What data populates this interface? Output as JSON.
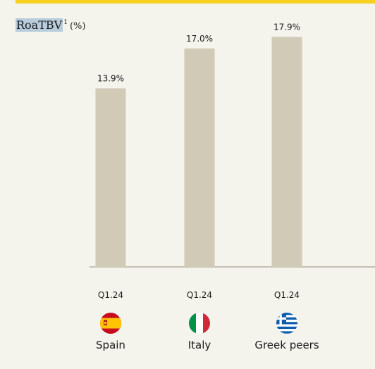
{
  "title": {
    "main": "RoaTBV",
    "superscript": "1",
    "unit": "(%)"
  },
  "colors": {
    "accent_rule": "#f5d021",
    "bar": "#d1cab6",
    "baseline": "#b5b0a2",
    "background": "#f4f3ec"
  },
  "chart_data": {
    "type": "bar",
    "title": "RoaTBV¹ (%)",
    "categories": [
      "Spain",
      "Italy",
      "Greek peers"
    ],
    "period_labels": [
      "Q1.24",
      "Q1.24",
      "Q1.24"
    ],
    "values": [
      13.9,
      17.0,
      17.9
    ],
    "value_labels": [
      "13.9%",
      "17.0%",
      "17.9%"
    ],
    "flags": [
      "spain-flag-icon",
      "italy-flag-icon",
      "greece-flag-icon"
    ],
    "ylim": [
      0,
      20.5
    ],
    "grid": false,
    "legend": "none"
  }
}
